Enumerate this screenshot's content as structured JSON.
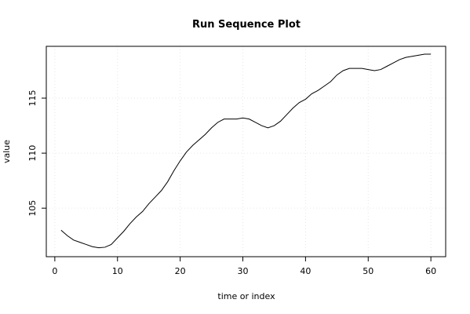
{
  "chart_data": {
    "type": "line",
    "title": "Run Sequence Plot",
    "xlabel": "time or index",
    "ylabel": "value",
    "x": [
      1,
      2,
      3,
      4,
      5,
      6,
      7,
      8,
      9,
      10,
      11,
      12,
      13,
      14,
      15,
      16,
      17,
      18,
      19,
      20,
      21,
      22,
      23,
      24,
      25,
      26,
      27,
      28,
      29,
      30,
      31,
      32,
      33,
      34,
      35,
      36,
      37,
      38,
      39,
      40,
      41,
      42,
      43,
      44,
      45,
      46,
      47,
      48,
      49,
      50,
      51,
      52,
      53,
      54,
      55,
      56,
      57,
      58,
      59,
      60
    ],
    "values": [
      103.0,
      102.5,
      102.1,
      101.9,
      101.7,
      101.5,
      101.4,
      101.45,
      101.7,
      102.3,
      102.9,
      103.6,
      104.2,
      104.7,
      105.4,
      106.0,
      106.6,
      107.4,
      108.4,
      109.3,
      110.1,
      110.7,
      111.2,
      111.7,
      112.3,
      112.8,
      113.1,
      113.1,
      113.1,
      113.2,
      113.1,
      112.8,
      112.5,
      112.3,
      112.5,
      112.9,
      113.5,
      114.1,
      114.6,
      114.9,
      115.4,
      115.7,
      116.1,
      116.5,
      117.1,
      117.5,
      117.7,
      117.7,
      117.7,
      117.6,
      117.5,
      117.6,
      117.9,
      118.2,
      118.5,
      118.7,
      118.8,
      118.9,
      119.0,
      119.0
    ],
    "color": "#000000",
    "xlim": [
      -1.36,
      62.36
    ],
    "ylim": [
      100.59,
      119.71
    ],
    "xticks": [
      0,
      10,
      20,
      30,
      40,
      50,
      60
    ],
    "yticks": [
      105,
      110,
      115
    ],
    "grid": true
  }
}
